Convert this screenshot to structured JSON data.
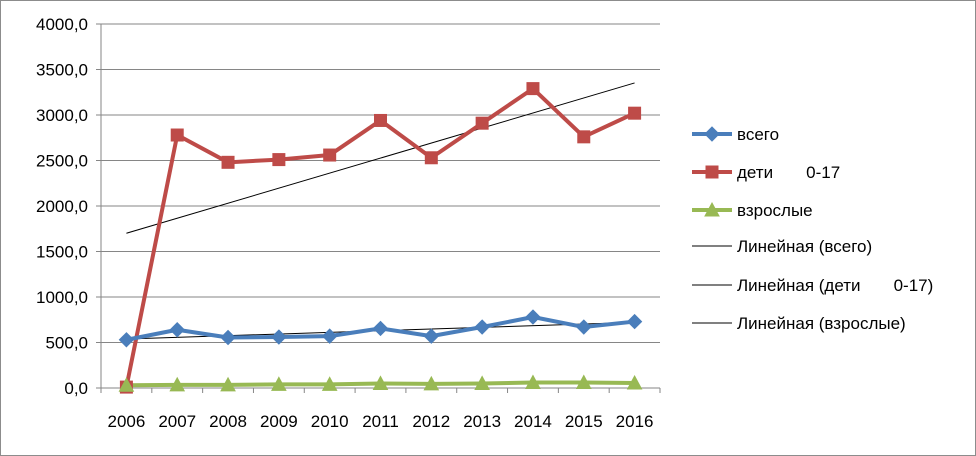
{
  "chart_data": {
    "type": "line",
    "categories": [
      "2006",
      "2007",
      "2008",
      "2009",
      "2010",
      "2011",
      "2012",
      "2013",
      "2014",
      "2015",
      "2016"
    ],
    "ylim": [
      0,
      4000
    ],
    "yticks": [
      0,
      500,
      1000,
      1500,
      2000,
      2500,
      3000,
      3500,
      4000
    ],
    "ytick_labels": [
      "0,0",
      "500,0",
      "1000,0",
      "1500,0",
      "2000,0",
      "2500,0",
      "3000,0",
      "3500,0",
      "4000,0"
    ],
    "grid": "horizontal",
    "legend_position": "right",
    "series": [
      {
        "name": "всего",
        "color": "#4a7ebb",
        "marker": "diamond",
        "values": [
          530,
          640,
          555,
          560,
          570,
          655,
          570,
          670,
          780,
          670,
          730
        ]
      },
      {
        "name": "дети       0-17",
        "color": "#be4b48",
        "marker": "square",
        "values": [
          10,
          2780,
          2480,
          2510,
          2560,
          2940,
          2530,
          2910,
          3290,
          2760,
          3020
        ]
      },
      {
        "name": "взрослые",
        "color": "#98b954",
        "marker": "triangle",
        "values": [
          30,
          35,
          35,
          40,
          40,
          50,
          45,
          50,
          60,
          60,
          55
        ]
      }
    ],
    "trendlines": [
      {
        "name": "Линейная (всего)",
        "color": "#000000"
      },
      {
        "name": "Линейная (дети       0-17)",
        "color": "#000000"
      },
      {
        "name": "Линейная (взрослые)",
        "color": "#000000"
      }
    ]
  }
}
